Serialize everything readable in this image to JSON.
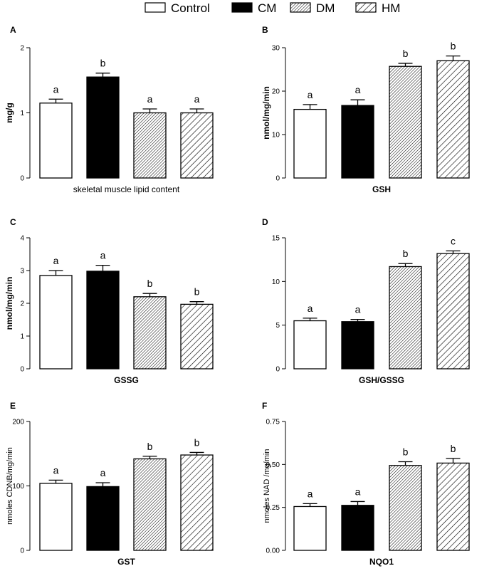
{
  "legend": {
    "items": [
      {
        "label": "Control",
        "pattern": "white"
      },
      {
        "label": "CM",
        "pattern": "black"
      },
      {
        "label": "DM",
        "pattern": "dense-hatch"
      },
      {
        "label": "HM",
        "pattern": "sparse-hatch"
      }
    ]
  },
  "colors": {
    "bar_stroke": "#000000",
    "black_fill": "#000000",
    "white_fill": "#ffffff",
    "axis": "#000000"
  },
  "chart_data": [
    {
      "panel": "A",
      "type": "bar",
      "categories": [
        "Control",
        "CM",
        "DM",
        "HM"
      ],
      "values": [
        1.15,
        1.55,
        1.0,
        1.0
      ],
      "errors": [
        0.06,
        0.06,
        0.06,
        0.06
      ],
      "letters": [
        "a",
        "b",
        "a",
        "a"
      ],
      "ylabel": "mg/g",
      "ylabel_bold": true,
      "xlabel": "skeletal muscle lipid content",
      "xlabel_bold": false,
      "ylim": [
        0,
        2
      ],
      "ticks": [
        0,
        1,
        2
      ],
      "tick_labels": [
        "0",
        "1",
        "2"
      ]
    },
    {
      "panel": "B",
      "type": "bar",
      "categories": [
        "Control",
        "CM",
        "DM",
        "HM"
      ],
      "values": [
        15.8,
        16.7,
        25.7,
        27.0
      ],
      "errors": [
        1.1,
        1.3,
        0.7,
        1.1
      ],
      "letters": [
        "a",
        "a",
        "b",
        "b"
      ],
      "ylabel": "nmol/mg/min",
      "ylabel_bold": true,
      "xlabel": "GSH",
      "xlabel_bold": true,
      "ylim": [
        0,
        30
      ],
      "ticks": [
        0,
        10,
        20,
        30
      ],
      "tick_labels": [
        "0",
        "10",
        "20",
        "30"
      ]
    },
    {
      "panel": "C",
      "type": "bar",
      "categories": [
        "Control",
        "CM",
        "DM",
        "HM"
      ],
      "values": [
        2.85,
        2.98,
        2.2,
        1.97
      ],
      "errors": [
        0.15,
        0.18,
        0.1,
        0.08
      ],
      "letters": [
        "a",
        "a",
        "b",
        "b"
      ],
      "ylabel": "nmol/mg/min",
      "ylabel_bold": true,
      "xlabel": "GSSG",
      "xlabel_bold": true,
      "ylim": [
        0,
        4
      ],
      "ticks": [
        0,
        1,
        2,
        3,
        4
      ],
      "tick_labels": [
        "0",
        "1",
        "2",
        "3",
        "4"
      ]
    },
    {
      "panel": "D",
      "type": "bar",
      "categories": [
        "Control",
        "CM",
        "DM",
        "HM"
      ],
      "values": [
        5.5,
        5.4,
        11.7,
        13.2
      ],
      "errors": [
        0.3,
        0.25,
        0.35,
        0.3
      ],
      "letters": [
        "a",
        "a",
        "b",
        "c"
      ],
      "ylabel": "",
      "ylabel_bold": true,
      "xlabel": "GSH/GSSG",
      "xlabel_bold": true,
      "ylim": [
        0,
        15
      ],
      "ticks": [
        0,
        5,
        10,
        15
      ],
      "tick_labels": [
        "0",
        "5",
        "10",
        "15"
      ]
    },
    {
      "panel": "E",
      "type": "bar",
      "categories": [
        "Control",
        "CM",
        "DM",
        "HM"
      ],
      "values": [
        104,
        99,
        142,
        148
      ],
      "errors": [
        5,
        6,
        4,
        4
      ],
      "letters": [
        "a",
        "a",
        "b",
        "b"
      ],
      "ylabel": "nmoles CDNB/mg/min",
      "ylabel_bold": false,
      "xlabel": "GST",
      "xlabel_bold": true,
      "ylim": [
        0,
        200
      ],
      "ticks": [
        0,
        100,
        200
      ],
      "tick_labels": [
        "0",
        "100",
        "200"
      ]
    },
    {
      "panel": "F",
      "type": "bar",
      "categories": [
        "Control",
        "CM",
        "DM",
        "HM"
      ],
      "values": [
        0.255,
        0.262,
        0.494,
        0.508
      ],
      "errors": [
        0.017,
        0.022,
        0.022,
        0.027
      ],
      "letters": [
        "a",
        "a",
        "b",
        "b"
      ],
      "ylabel": "nmoles NAD /mg/min",
      "ylabel_bold": false,
      "xlabel": "NQO1",
      "xlabel_bold": true,
      "ylim": [
        0,
        0.75
      ],
      "ticks": [
        0,
        0.25,
        0.5,
        0.75
      ],
      "tick_labels": [
        "0.00",
        "0.25",
        "0.50",
        "0.75"
      ]
    }
  ]
}
